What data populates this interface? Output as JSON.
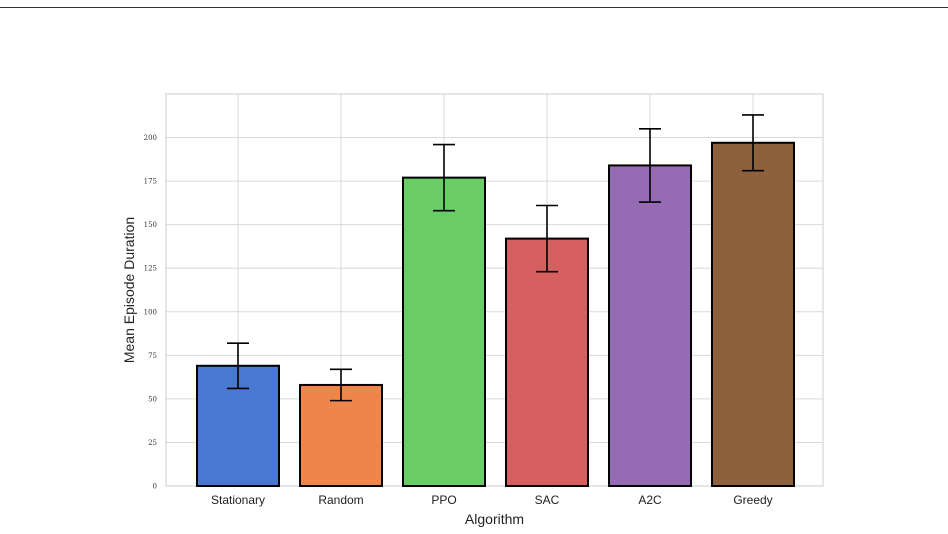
{
  "chart_data": {
    "type": "bar",
    "title": "",
    "xlabel": "Algorithm",
    "ylabel": "Mean Episode Duration",
    "categories": [
      "Stationary",
      "Random",
      "PPO",
      "SAC",
      "A2C",
      "Greedy"
    ],
    "values": [
      69,
      58,
      177,
      142,
      184,
      197
    ],
    "errors": [
      13,
      9,
      19,
      19,
      21,
      16
    ],
    "ylim": [
      0,
      225
    ],
    "yticks": [
      0,
      25,
      50,
      75,
      100,
      125,
      150,
      175,
      200
    ],
    "grid": true,
    "legend": "none",
    "colors": [
      "#4878d0",
      "#ee854a",
      "#6acc64",
      "#d65f5f",
      "#956cb4",
      "#8c613c"
    ],
    "edge_color": "#000000"
  }
}
